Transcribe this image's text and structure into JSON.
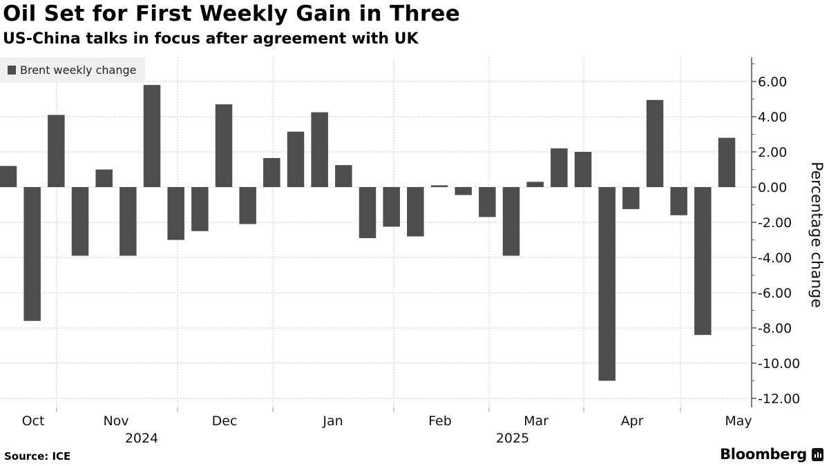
{
  "title": "Oil Set for First Weekly Gain in Three",
  "subtitle": "US-China talks in focus after agreement with UK",
  "source": "Source: ICE",
  "brand": "Bloomberg",
  "chart_data": {
    "type": "bar",
    "title": "Oil Set for First Weekly Gain in Three",
    "subtitle": "US-China talks in focus after agreement with UK",
    "ylabel": "Percentage change",
    "xlabel": "",
    "ylim": [
      -12.5,
      7.4
    ],
    "yticks": [
      "6.00",
      "4.00",
      "2.00",
      "0.00",
      "-2.00",
      "-4.00",
      "-6.00",
      "-8.00",
      "-10.00",
      "-12.00"
    ],
    "ytick_values": [
      6,
      4,
      2,
      0,
      -2,
      -4,
      -6,
      -8,
      -10,
      -12
    ],
    "month_labels": [
      "Oct",
      "Nov",
      "Dec",
      "Jan",
      "Feb",
      "Mar",
      "Apr",
      "May"
    ],
    "year_labels": [
      "2024",
      "2025"
    ],
    "grid": true,
    "legend": {
      "placement": "top-left",
      "entries": [
        "Brent weekly change"
      ]
    },
    "color": "#4d4d4d",
    "series": [
      {
        "name": "Brent weekly change",
        "values": [
          1.2,
          -7.6,
          4.1,
          -3.9,
          1.0,
          -3.9,
          5.8,
          -3.0,
          -2.5,
          4.7,
          -2.1,
          1.65,
          3.15,
          4.25,
          1.25,
          -2.9,
          -2.25,
          -2.8,
          0.1,
          -0.45,
          -1.7,
          -3.9,
          0.3,
          2.2,
          2.0,
          -11.0,
          -1.25,
          4.95,
          -1.6,
          -8.4,
          2.8
        ]
      }
    ]
  }
}
